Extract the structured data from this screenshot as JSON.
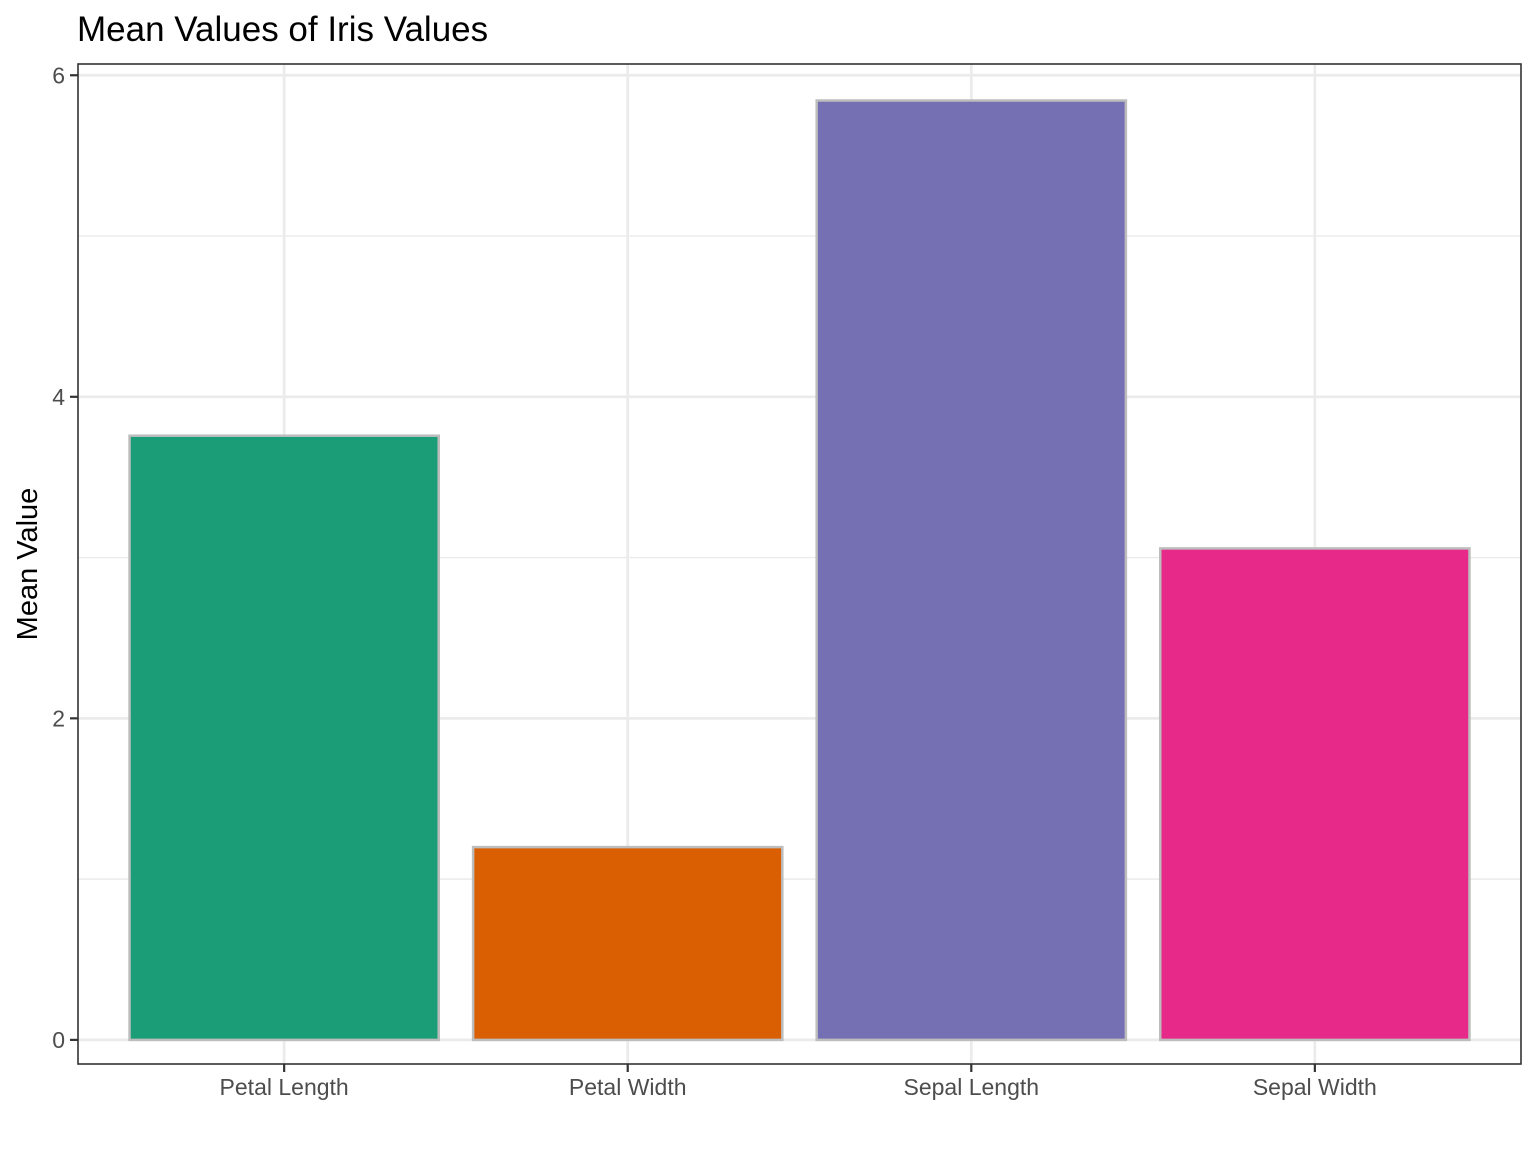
{
  "chart_data": {
    "type": "bar",
    "title": "Mean Values of Iris Values",
    "xlabel": "",
    "ylabel": "Mean Value",
    "categories": [
      "Petal Length",
      "Petal Width",
      "Sepal Length",
      "Sepal Width"
    ],
    "values": [
      3.758,
      1.199,
      5.843,
      3.057
    ],
    "colors": [
      "#1b9e77",
      "#d95f02",
      "#7570b3",
      "#e7298a"
    ],
    "bar_outline_color": "#bdbdbd",
    "ylim": [
      -0.15,
      6.07
    ],
    "yticks": [
      0,
      2,
      4,
      6
    ],
    "grid": true,
    "legend": "none"
  }
}
